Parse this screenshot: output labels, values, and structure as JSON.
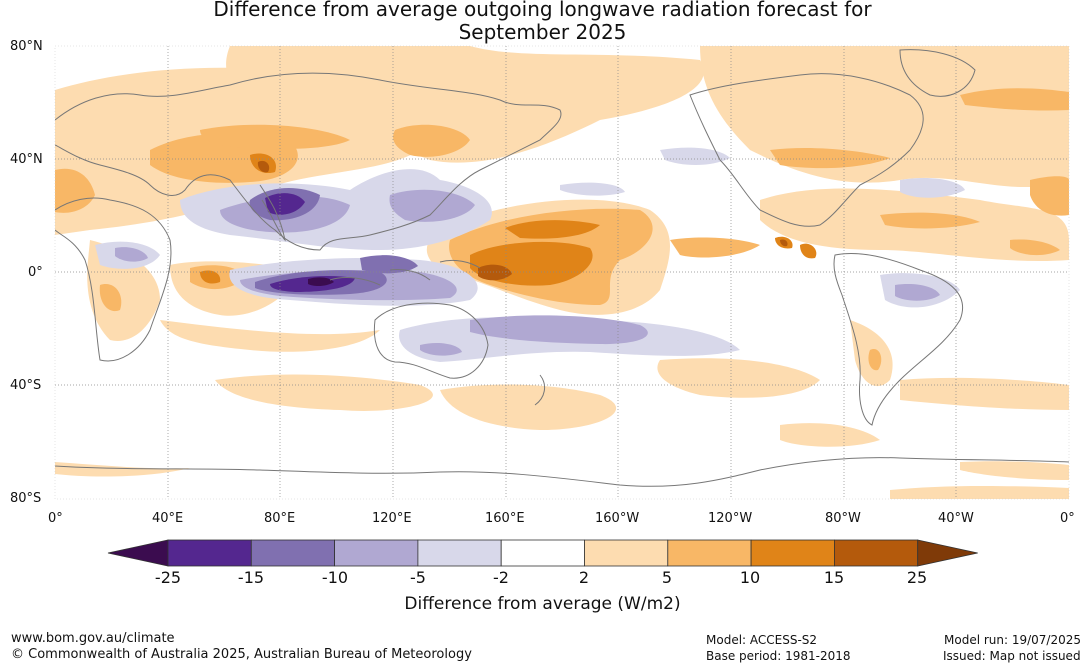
{
  "title": {
    "line1": "Difference from average outgoing longwave radiation forecast for",
    "line2": "September 2025"
  },
  "map": {
    "lat_labels": [
      "80°N",
      "40°N",
      "0°",
      "40°S",
      "80°S"
    ],
    "lon_labels": [
      "0°",
      "40°E",
      "80°E",
      "120°E",
      "160°E",
      "160°W",
      "120°W",
      "80°W",
      "40°W",
      "0°"
    ],
    "colors": {
      "ocean_land_background": "#ffffff",
      "coastline": "#777777",
      "gridline": "#888888"
    }
  },
  "colorbar": {
    "ticks": [
      "-25",
      "-15",
      "-10",
      "-5",
      "-2",
      "2",
      "5",
      "10",
      "15",
      "25"
    ],
    "colors": [
      "#3b0c4f",
      "#54278f",
      "#8070b0",
      "#b0a8d2",
      "#d8d8ea",
      "#ffffff",
      "#fddcb0",
      "#f8b766",
      "#e08418",
      "#b45a0c",
      "#7f3a08"
    ],
    "label": "Difference from average (W/m2)"
  },
  "footer": {
    "website": "www.bom.gov.au/climate",
    "copyright": "© Commonwealth of Australia 2025, Australian Bureau of Meteorology",
    "model": "Model: ACCESS-S2",
    "base_period": "Base period: 1981-2018",
    "model_run": "Model run: 19/07/2025",
    "issued": "Issued: Map not issued"
  }
}
